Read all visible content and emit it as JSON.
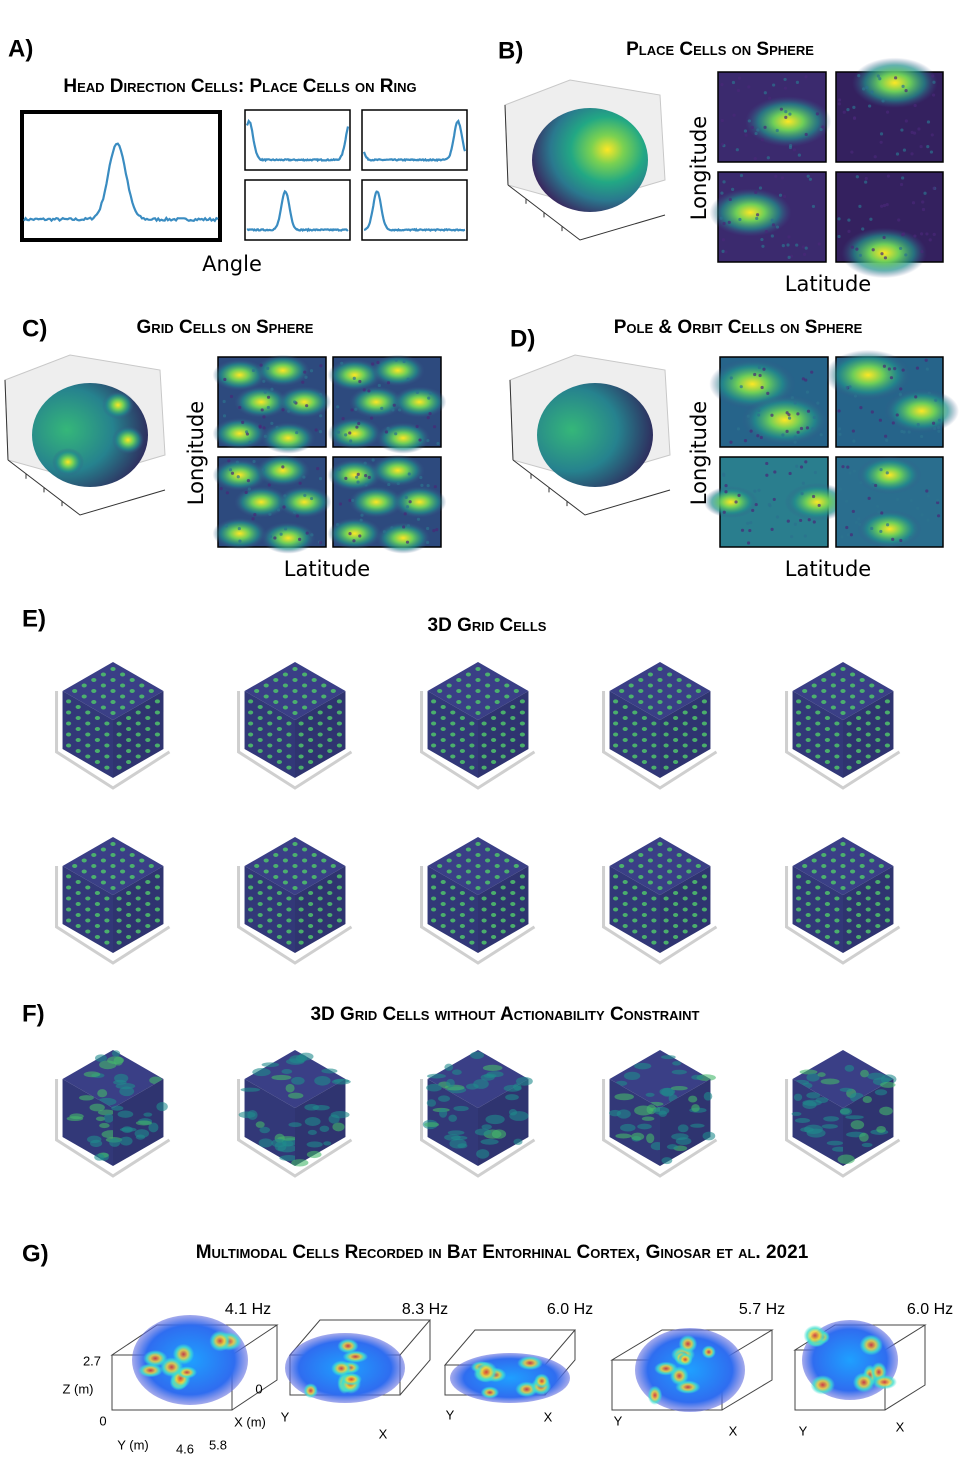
{
  "panels": [
    {
      "label": "A)",
      "title": "Head Direction Cells: Place Cells on Ring",
      "xlabel": "Angle"
    },
    {
      "label": "B)",
      "title": "Place Cells on Sphere",
      "xlabel": "Latitude",
      "ylabel": "Longitude"
    },
    {
      "label": "C)",
      "title": "Grid Cells on Sphere",
      "xlabel": "Latitude",
      "ylabel": "Longitude"
    },
    {
      "label": "D)",
      "title": "Pole & Orbit Cells on Sphere",
      "xlabel": "Latitude",
      "ylabel": "Longitude"
    },
    {
      "label": "E)",
      "title": "3D Grid Cells"
    },
    {
      "label": "F)",
      "title": "3D Grid Cells without Actionability Constraint"
    },
    {
      "label": "G)",
      "title": "Multimodal Cells Recorded in Bat Entorhinal Cortex, Ginosar et al. 2021",
      "rates": [
        "4.1 Hz",
        "8.3 Hz",
        "6.0 Hz",
        "5.7 Hz",
        "6.0 Hz"
      ],
      "first_axes": {
        "z_max": "2.7",
        "z_label": "Z (m)",
        "z_min": "0",
        "x_min": "0",
        "x_label": "X (m)",
        "x_max": "5.8",
        "y_label": "Y (m)",
        "y_max": "4.6"
      },
      "other_axes": [
        {
          "y": "Y",
          "x": "X"
        },
        {
          "y": "Y",
          "x": "X"
        },
        {
          "y": "Y",
          "x": "X"
        },
        {
          "y": "Y",
          "x": "X"
        }
      ]
    }
  ]
}
